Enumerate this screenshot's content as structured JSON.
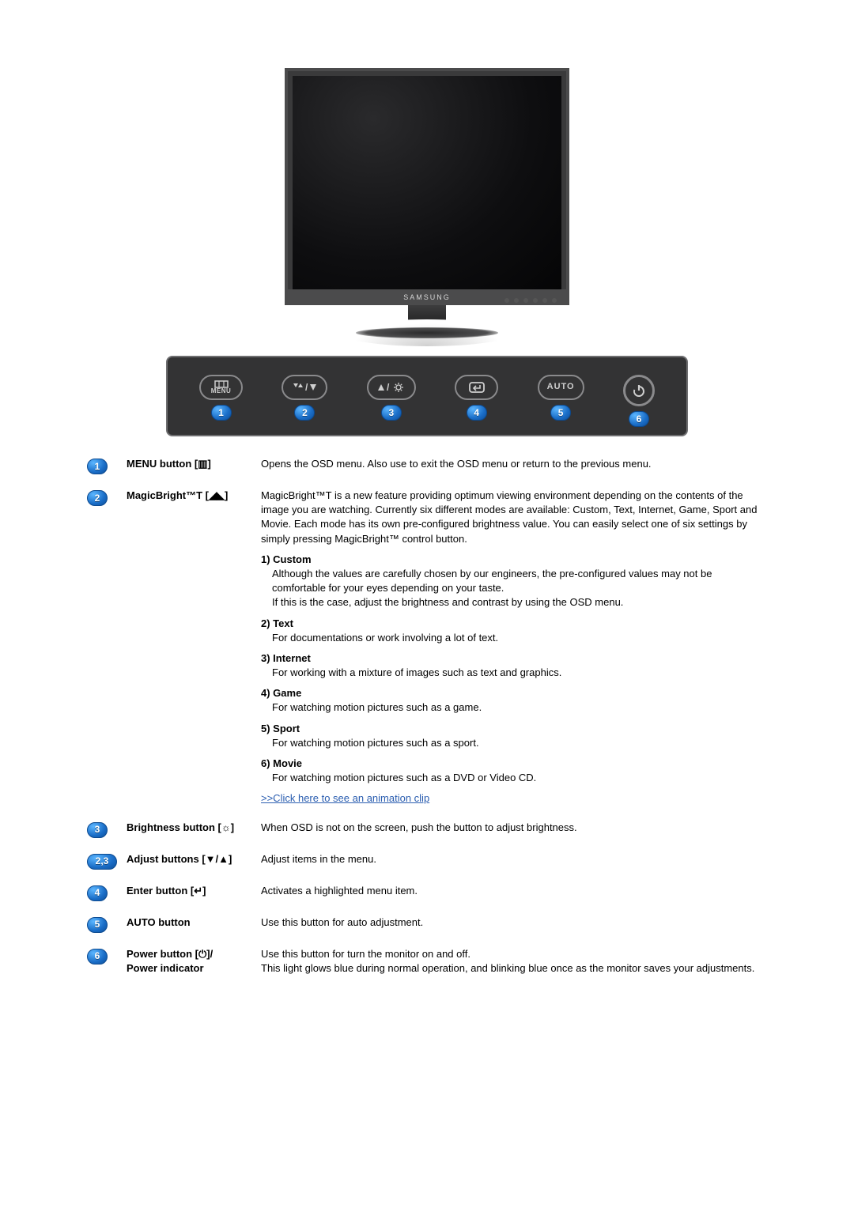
{
  "figure": {
    "brand": "SAMSUNG",
    "strip": {
      "background_color": "#333334",
      "border_color": "#6e6e70",
      "pill_border_color": "#8a8a8c",
      "badge_gradient": [
        "#5bb6ff",
        "#1a6dc7",
        "#0d4f99"
      ],
      "buttons": [
        {
          "badge": "1",
          "icon": "menu",
          "label": "MENU"
        },
        {
          "badge": "2",
          "icon": "magicbright-down"
        },
        {
          "badge": "3",
          "icon": "bright-up"
        },
        {
          "badge": "4",
          "icon": "enter"
        },
        {
          "badge": "5",
          "text": "AUTO"
        },
        {
          "badge": "6",
          "icon": "power"
        }
      ]
    }
  },
  "rows": [
    {
      "badge": "1",
      "name": "MENU button [▥]",
      "desc": "Opens the OSD menu. Also use to exit the OSD menu or return to the previous menu."
    },
    {
      "badge": "2",
      "name": "MagicBright™T [◢◣]",
      "desc": "MagicBright™T is a new feature providing optimum viewing environment depending on the contents of the image you are watching. Currently six different modes are available: Custom, Text, Internet, Game, Sport and Movie. Each mode has its own pre-configured brightness value. You can easily select one of six settings by simply pressing MagicBright™ control button.",
      "modes": [
        {
          "title": "1) Custom",
          "text": "Although the values are carefully chosen by our engineers, the pre-configured values may not be comfortable for your eyes depending on your taste.\nIf this is the case, adjust the brightness and contrast by using the OSD menu."
        },
        {
          "title": "2) Text",
          "text": "For documentations or work involving a lot of text."
        },
        {
          "title": "3) Internet",
          "text": "For working with a mixture of images such as text and graphics."
        },
        {
          "title": "4) Game",
          "text": "For watching motion pictures such as a game."
        },
        {
          "title": "5) Sport",
          "text": "For watching motion pictures such as a sport."
        },
        {
          "title": "6) Movie",
          "text": "For watching motion pictures such as a DVD or Video CD."
        }
      ],
      "clip_link": ">>Click here to see an animation clip"
    },
    {
      "badge": "3",
      "name": "Brightness button [☼]",
      "desc": "When OSD is not on the screen, push the button to adjust brightness."
    },
    {
      "badge": "2,3",
      "double": true,
      "name": "Adjust buttons [▼/▲]",
      "desc": "Adjust items in the menu."
    },
    {
      "badge": "4",
      "name": "Enter button [↵]",
      "desc": "Activates a highlighted menu item."
    },
    {
      "badge": "5",
      "name": "AUTO button",
      "desc": "Use this button for auto adjustment."
    },
    {
      "badge": "6",
      "name_lines": [
        "Power button [⏻]/",
        "Power indicator"
      ],
      "desc": "Use this button for turn the monitor on and off.\nThis light glows blue during normal operation, and blinking blue once as the monitor saves your adjustments."
    }
  ]
}
